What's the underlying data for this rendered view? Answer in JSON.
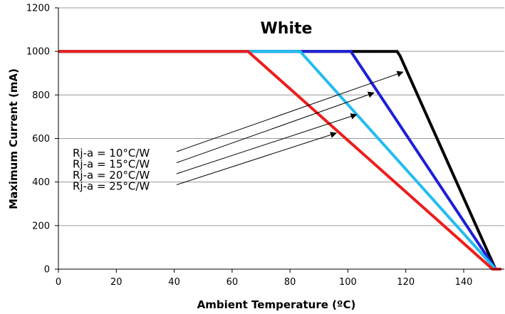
{
  "chart_data": {
    "type": "line",
    "title": "White",
    "xlabel": "Ambient Temperature (ºC)",
    "ylabel": "Maximum Current (mA)",
    "xlim": [
      0,
      150
    ],
    "ylim": [
      0,
      1200
    ],
    "xticks": [
      0,
      20,
      40,
      60,
      80,
      100,
      120,
      140
    ],
    "yticks": [
      0,
      200,
      400,
      600,
      800,
      1000,
      1200
    ],
    "grid": "horizontal",
    "series": [
      {
        "name": "Rj-a = 10°C/W",
        "color": "#000000",
        "points": [
          [
            0,
            1000
          ],
          [
            117,
            1000
          ],
          [
            118,
            980
          ],
          [
            151,
            0
          ],
          [
            153,
            0
          ]
        ]
      },
      {
        "name": "Rj-a = 15°C/W",
        "color": "#1f1fd6",
        "points": [
          [
            0,
            1000
          ],
          [
            101,
            1000
          ],
          [
            151,
            0
          ],
          [
            153,
            0
          ]
        ]
      },
      {
        "name": "Rj-a = 20°C/W",
        "color": "#22bdf0",
        "points": [
          [
            0,
            1000
          ],
          [
            83.5,
            1000
          ],
          [
            151,
            0
          ],
          [
            153,
            0
          ]
        ]
      },
      {
        "name": "Rj-a = 25°C/W",
        "color": "#ee1c1c",
        "points": [
          [
            0,
            1000
          ],
          [
            65.5,
            1000
          ],
          [
            150,
            0
          ],
          [
            153,
            0
          ]
        ]
      }
    ],
    "annotations": [
      {
        "text": "Rj-a = 10°C/W",
        "target": [
          119,
          905
        ]
      },
      {
        "text": "Rj-a = 15°C/W",
        "target": [
          109,
          810
        ]
      },
      {
        "text": "Rj-a = 20°C/W",
        "target": [
          103,
          710
        ]
      },
      {
        "text": "Rj-a = 25°C/W",
        "target": [
          96,
          625
        ]
      }
    ]
  }
}
